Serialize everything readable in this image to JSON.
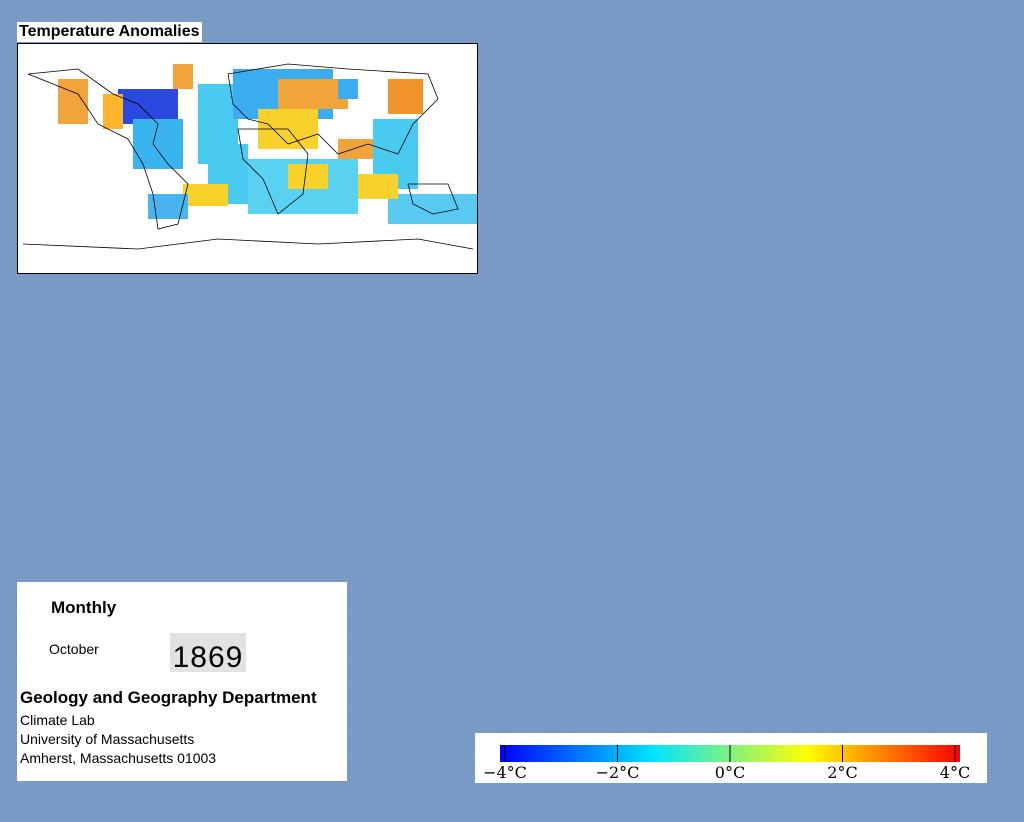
{
  "map": {
    "title": "Temperature Anomalies"
  },
  "info": {
    "period": "Monthly",
    "month": "October",
    "year": "1869",
    "department": "Geology and Geography Department",
    "lines": [
      "Climate Lab",
      "University of Massachusetts",
      "Amherst, Massachusetts 01003"
    ]
  },
  "colorbar": {
    "lim": [
      -4,
      4
    ],
    "colors": [
      "#0000ff",
      "#00e5ff",
      "#ffff00",
      "#ff0000"
    ],
    "ticks": [
      {
        "value": -4,
        "label": "−4°C"
      },
      {
        "value": -2,
        "label": "−2°C"
      },
      {
        "value": 0,
        "label": "0°C"
      },
      {
        "value": 2,
        "label": "2°C"
      },
      {
        "value": 4,
        "label": "4°C"
      }
    ]
  }
}
